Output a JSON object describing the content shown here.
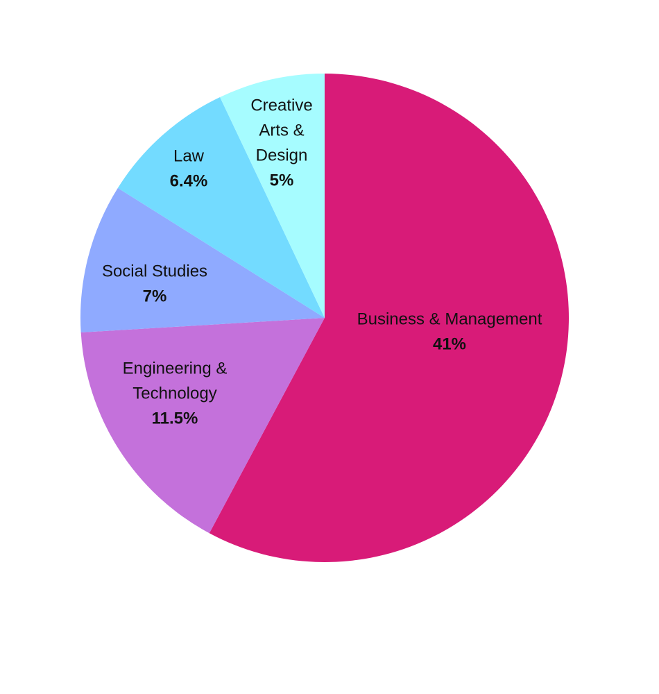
{
  "chart_data": {
    "type": "pie",
    "title": "",
    "start_angle_deg": -90,
    "direction": "clockwise",
    "slices": [
      {
        "label": "Business & Management",
        "label_lines": [
          "Business & Management"
        ],
        "value": 41,
        "value_label": "41%",
        "color": "#D81B78"
      },
      {
        "label": "Engineering & Technology",
        "label_lines": [
          "Engineering &",
          "Technology"
        ],
        "value": 11.5,
        "value_label": "11.5%",
        "color": "#C471DB"
      },
      {
        "label": "Social Studies",
        "label_lines": [
          "Social Studies"
        ],
        "value": 7,
        "value_label": "7%",
        "color": "#8FAAFF"
      },
      {
        "label": "Law",
        "label_lines": [
          "Law"
        ],
        "value": 6.4,
        "value_label": "6.4%",
        "color": "#73DBFF"
      },
      {
        "label": "Creative Arts & Design",
        "label_lines": [
          "Creative",
          "Arts &",
          "Design"
        ],
        "value": 5,
        "value_label": "5%",
        "color": "#A6FCFF"
      }
    ]
  }
}
